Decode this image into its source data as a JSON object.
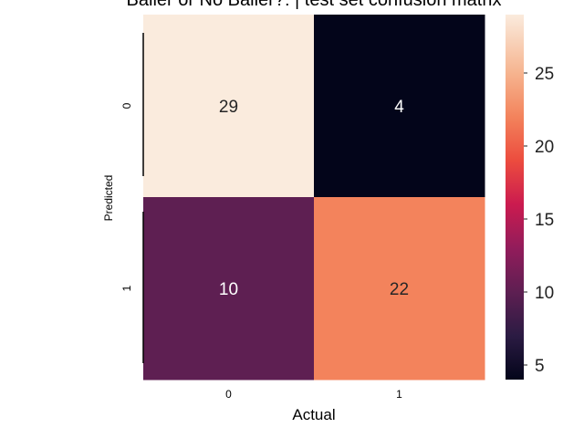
{
  "chart_data": {
    "type": "heatmap",
    "title": "Baller or No Baller?: | test set confusion matrix",
    "xlabel": "Actual",
    "ylabel": "Predicted",
    "x_categories": [
      "0",
      "1"
    ],
    "y_categories": [
      "0",
      "1"
    ],
    "values": [
      [
        29,
        4
      ],
      [
        10,
        22
      ]
    ],
    "colorbar": {
      "range": [
        4,
        29
      ],
      "ticks": [
        5,
        10,
        15,
        20,
        25
      ]
    },
    "colormap": "rocket"
  }
}
